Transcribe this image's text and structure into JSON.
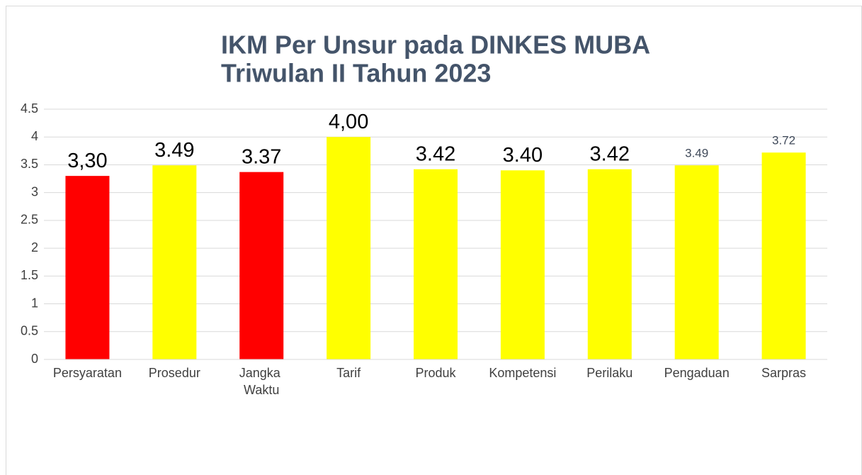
{
  "chart_data": {
    "type": "bar",
    "title": [
      "IKM Per Unsur pada DINKES MUBA",
      "Triwulan II Tahun 2023"
    ],
    "categories": [
      "Persyaratan",
      "Prosedur",
      "Jangka Waktu",
      "Tarif",
      "Produk",
      "Kompetensi",
      "Perilaku",
      "Pengaduan",
      "Sarpras"
    ],
    "values": [
      3.3,
      3.49,
      3.37,
      4.0,
      3.42,
      3.4,
      3.42,
      3.49,
      3.72
    ],
    "value_labels": [
      "3,30",
      "3.49",
      "3.37",
      "4,00",
      "3.42",
      "3.40",
      "3.42",
      "3.49",
      "3.72"
    ],
    "value_label_colors": [
      "#000000",
      "#000000",
      "#000000",
      "#000000",
      "#000000",
      "#000000",
      "#000000",
      "#404a5a",
      "#404a5a"
    ],
    "colors": [
      "#ff0000",
      "#ffff00",
      "#ff0000",
      "#ffff00",
      "#ffff00",
      "#ffff00",
      "#ffff00",
      "#ffff00",
      "#ffff00"
    ],
    "ylim": [
      0,
      4.5
    ],
    "yticks": [
      0,
      0.5,
      1,
      1.5,
      2,
      2.5,
      3,
      3.5,
      4,
      4.5
    ],
    "grid": true
  }
}
